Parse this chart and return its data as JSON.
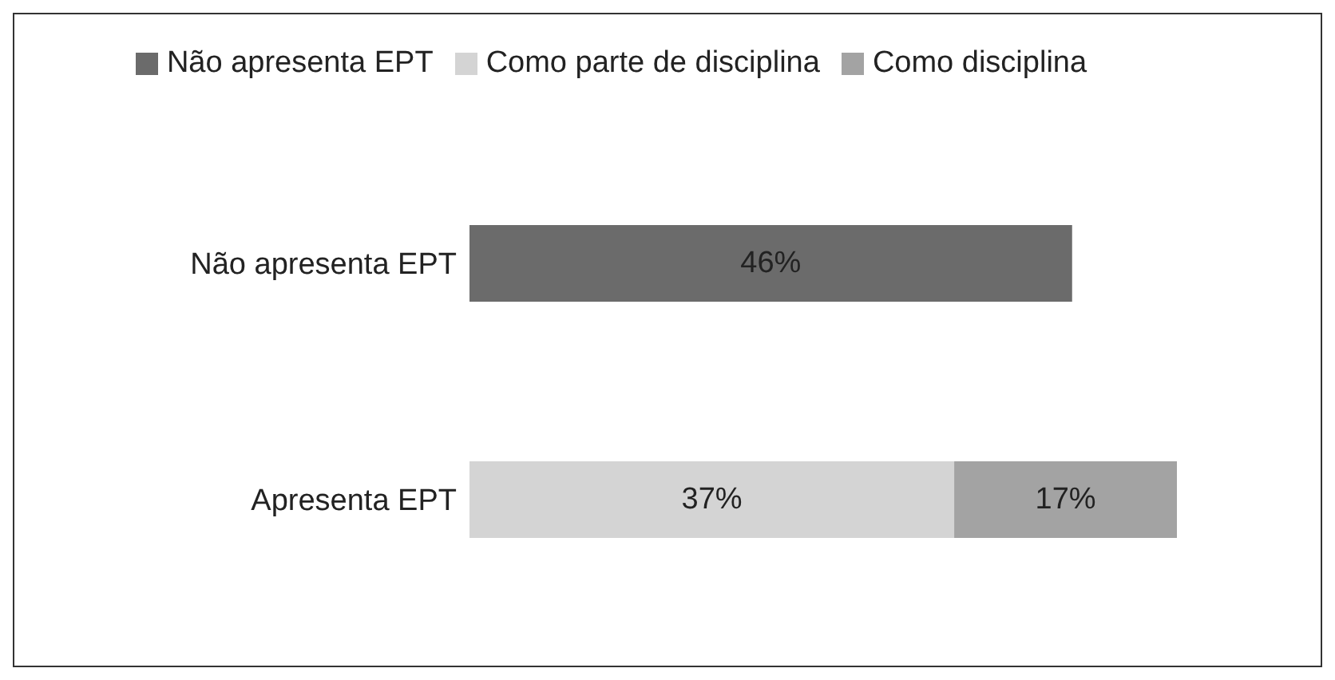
{
  "chart_data": {
    "type": "bar",
    "orientation": "horizontal",
    "stacked": true,
    "legend": "top",
    "grid": false,
    "categories": [
      "Não apresenta EPT",
      "Apresenta EPT"
    ],
    "series": [
      {
        "name": "Não apresenta EPT",
        "color": "#6b6b6b",
        "values": [
          46,
          null
        ],
        "value_labels": [
          "46%",
          null
        ]
      },
      {
        "name": "Como parte de disciplina",
        "color": "#d4d4d4",
        "values": [
          null,
          37
        ],
        "value_labels": [
          null,
          "37%"
        ]
      },
      {
        "name": "Como disciplina",
        "color": "#a3a3a3",
        "values": [
          null,
          17
        ],
        "value_labels": [
          null,
          "17%"
        ]
      }
    ]
  }
}
